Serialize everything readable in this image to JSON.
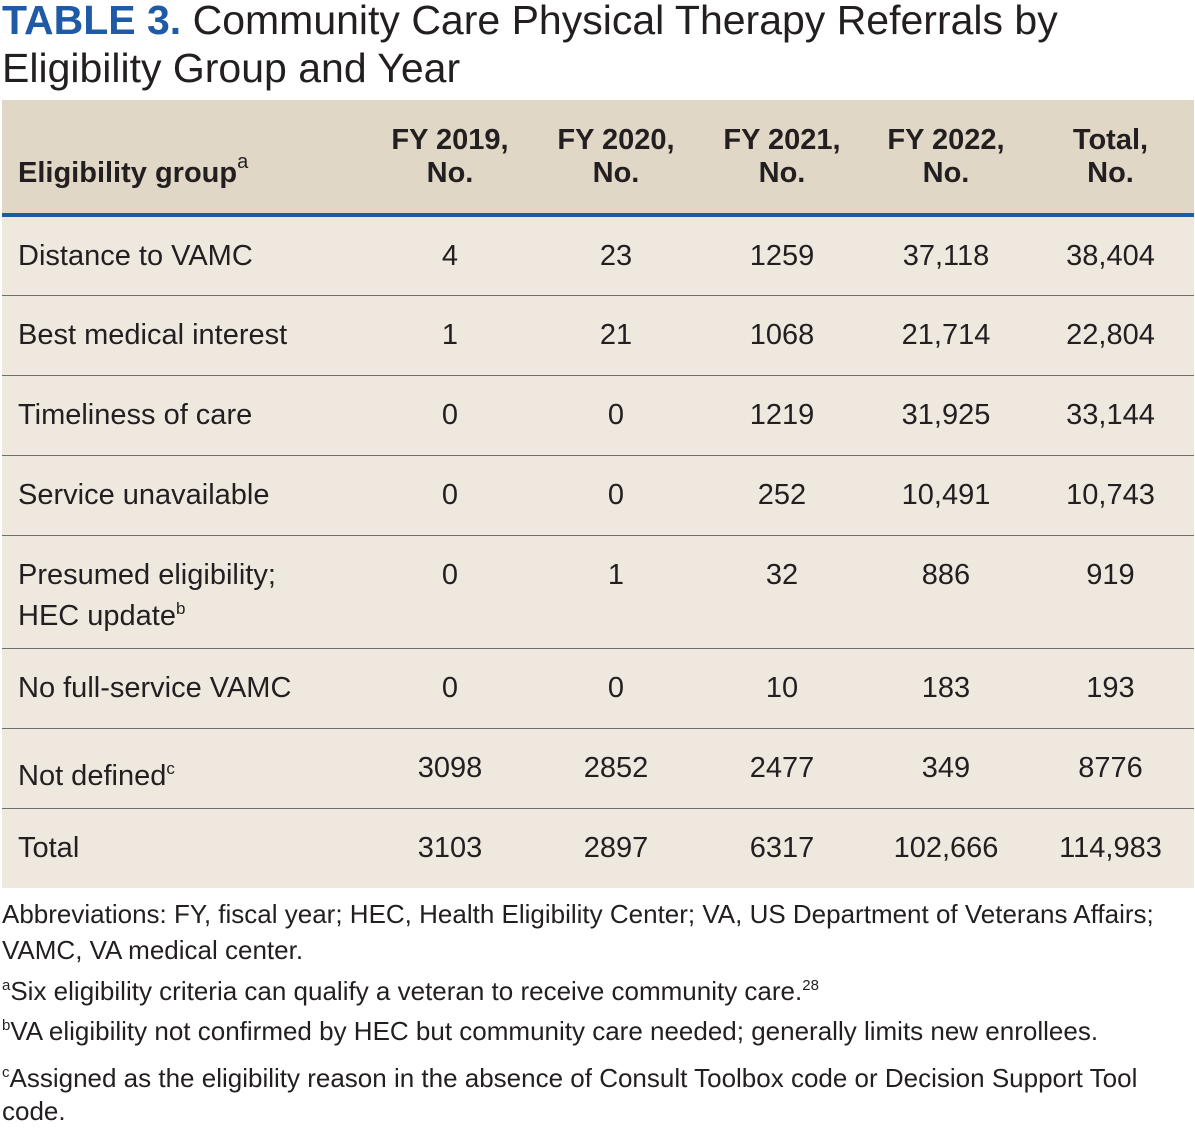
{
  "title": {
    "label": "TABLE 3.",
    "text": "Community Care Physical Therapy Referrals by Eligibility Group and Year"
  },
  "table": {
    "columns": [
      {
        "label": "Eligibility group",
        "sup": "a"
      },
      {
        "line1": "FY 2019,",
        "line2": "No."
      },
      {
        "line1": "FY 2020,",
        "line2": "No."
      },
      {
        "line1": "FY 2021,",
        "line2": "No."
      },
      {
        "line1": "FY 2022,",
        "line2": "No."
      },
      {
        "line1": "Total,",
        "line2": "No."
      }
    ],
    "rows": [
      {
        "group": "Distance to VAMC",
        "cells": [
          "4",
          "23",
          "1259",
          "37,118",
          "38,404"
        ]
      },
      {
        "group": "Best medical interest",
        "cells": [
          "1",
          "21",
          "1068",
          "21,714",
          "22,804"
        ]
      },
      {
        "group": "Timeliness of care",
        "cells": [
          "0",
          "0",
          "1219",
          "31,925",
          "33,144"
        ]
      },
      {
        "group": "Service unavailable",
        "cells": [
          "0",
          "0",
          "252",
          "10,491",
          "10,743"
        ]
      },
      {
        "group_line1": "Presumed eligibility;",
        "group_line2": "HEC update",
        "sup": "b",
        "cells": [
          "0",
          "1",
          "32",
          "886",
          "919"
        ]
      },
      {
        "group": "No full-service VAMC",
        "cells": [
          "0",
          "0",
          "10",
          "183",
          "193"
        ]
      },
      {
        "group": "Not defined",
        "sup": "c",
        "cells": [
          "3098",
          "2852",
          "2477",
          "349",
          "8776"
        ]
      },
      {
        "group": "Total",
        "cells": [
          "3103",
          "2897",
          "6317",
          "102,666",
          "114,983"
        ]
      }
    ]
  },
  "footnotes": {
    "abbreviations": "Abbreviations: FY, fiscal year; HEC, Health Eligibility Center; VA, US Department of Veterans Affairs; VAMC, VA medical center.",
    "a": {
      "mark": "a",
      "text": "Six eligibility criteria can qualify a veteran to receive community care.",
      "ref": "28"
    },
    "b": {
      "mark": "b",
      "text": "VA eligibility not confirmed by HEC but community care needed; generally limits new enrollees."
    },
    "c": {
      "mark": "c",
      "text": "Assigned as the eligibility reason in the absence of Consult Toolbox code or Decision Support Tool code."
    }
  },
  "colors": {
    "accent": "#1f5aa6",
    "header_bg": "#e0d7c6",
    "body_bg": "#eee8df"
  }
}
